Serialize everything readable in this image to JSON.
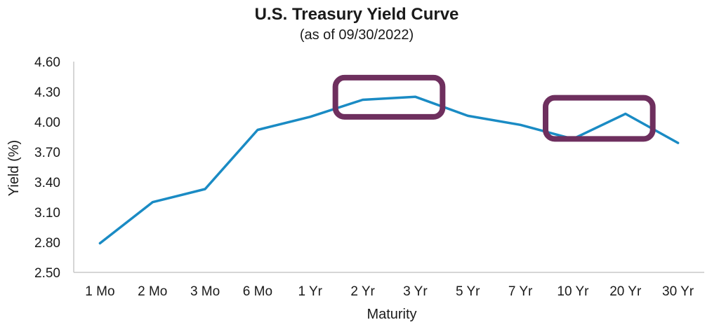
{
  "chart_data": {
    "type": "line",
    "title": "U.S. Treasury Yield Curve",
    "subtitle": "(as of 09/30/2022)",
    "xlabel": "Maturity",
    "ylabel": "Yield (%)",
    "categories": [
      "1 Mo",
      "2 Mo",
      "3 Mo",
      "6 Mo",
      "1 Yr",
      "2 Yr",
      "3 Yr",
      "5 Yr",
      "7 Yr",
      "10 Yr",
      "20 Yr",
      "30 Yr"
    ],
    "series": [
      {
        "values": [
          2.79,
          3.2,
          3.33,
          3.92,
          4.05,
          4.22,
          4.25,
          4.06,
          3.97,
          3.83,
          4.08,
          3.79
        ]
      }
    ],
    "ylim": [
      2.5,
      4.6
    ],
    "yticks": [
      "4.60",
      "4.30",
      "4.00",
      "3.70",
      "3.40",
      "3.10",
      "2.80",
      "2.50"
    ],
    "grid": false,
    "line_color": "#1a8bc4",
    "highlight_color": "#6e2f5e",
    "highlights": [
      {
        "from": "2 Yr",
        "to": "3 Yr",
        "ymin": 4.05,
        "ymax": 4.44
      },
      {
        "from": "10 Yr",
        "to": "20 Yr",
        "ymin": 3.83,
        "ymax": 4.24
      }
    ]
  }
}
